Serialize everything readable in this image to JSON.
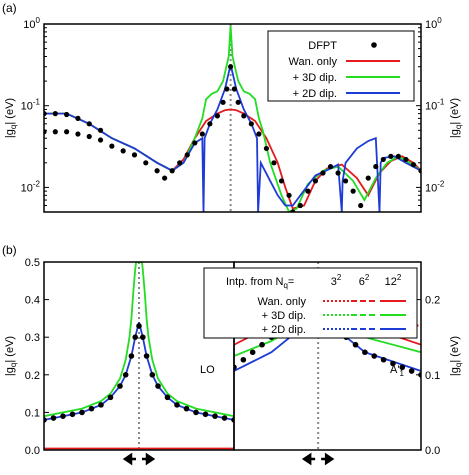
{
  "colors": {
    "dfpt": "#000000",
    "wannier": "#e41a1c",
    "dip3d": "#22dd22",
    "dip2d": "#1f3bd6",
    "guide": "#888888"
  },
  "chart_data": [
    {
      "panel_label": "(a)",
      "type": "line",
      "scale": "log",
      "ylim": [
        0.005,
        1
      ],
      "xlim": [
        0,
        1
      ],
      "ylabel_left": "|g",
      "ylabel_sub": "q",
      "ylabel_unit": "| (eV)",
      "ylabel_right": "|g",
      "yticks": [
        {
          "value": 1,
          "base": "10",
          "exp": "0"
        },
        {
          "value": 0.1,
          "base": "10",
          "exp": "-1"
        },
        {
          "value": 0.01,
          "base": "10",
          "exp": "-2"
        }
      ],
      "legend": {
        "entries": [
          {
            "label": "DFPT",
            "style": "dots",
            "color": "#000000"
          },
          {
            "label": "Wan. only",
            "style": "line",
            "color": "#e41a1c"
          },
          {
            "label": "+ 3D dip.",
            "style": "line",
            "color": "#22dd22"
          },
          {
            "label": "+ 2D dip.",
            "style": "line",
            "color": "#1f3bd6"
          }
        ]
      },
      "gamma_x": 0.495,
      "series": [
        {
          "name": "Wan. only",
          "color": "#e41a1c",
          "x": [
            0.0,
            0.06,
            0.12,
            0.18,
            0.24,
            0.3,
            0.34,
            0.37,
            0.4,
            0.43,
            0.46,
            0.48,
            0.495,
            0.51,
            0.53,
            0.56,
            0.59,
            0.62,
            0.64,
            0.66,
            0.69,
            0.72,
            0.75,
            0.79,
            0.83,
            0.86,
            0.89,
            0.92,
            0.95,
            0.98,
            1.0
          ],
          "y": [
            0.08,
            0.08,
            0.06,
            0.04,
            0.03,
            0.02,
            0.016,
            0.022,
            0.04,
            0.065,
            0.08,
            0.088,
            0.09,
            0.088,
            0.08,
            0.065,
            0.04,
            0.02,
            0.01,
            0.0055,
            0.006,
            0.012,
            0.017,
            0.019,
            0.013,
            0.008,
            0.015,
            0.021,
            0.024,
            0.02,
            0.016
          ]
        },
        {
          "name": "+ 3D dip.",
          "color": "#22dd22",
          "x": [
            0.0,
            0.06,
            0.12,
            0.18,
            0.24,
            0.3,
            0.34,
            0.37,
            0.4,
            0.42,
            0.43,
            0.445,
            0.46,
            0.475,
            0.49,
            0.495,
            0.5,
            0.515,
            0.53,
            0.545,
            0.56,
            0.57,
            0.58,
            0.6,
            0.63,
            0.65,
            0.67,
            0.7,
            0.74,
            0.78,
            0.82,
            0.85,
            0.88,
            0.91,
            0.94,
            0.97,
            1.0
          ],
          "y": [
            0.08,
            0.08,
            0.06,
            0.04,
            0.03,
            0.02,
            0.016,
            0.02,
            0.04,
            0.07,
            0.12,
            0.14,
            0.15,
            0.2,
            0.4,
            0.95,
            0.4,
            0.2,
            0.15,
            0.14,
            0.12,
            0.07,
            0.05,
            0.02,
            0.008,
            0.005,
            0.0055,
            0.011,
            0.016,
            0.018,
            0.012,
            0.007,
            0.013,
            0.02,
            0.024,
            0.02,
            0.016
          ]
        },
        {
          "name": "+ 2D dip.",
          "color": "#1f3bd6",
          "x": [
            0.0,
            0.06,
            0.12,
            0.18,
            0.24,
            0.3,
            0.34,
            0.37,
            0.4,
            0.42,
            0.423,
            0.426,
            0.44,
            0.46,
            0.48,
            0.495,
            0.51,
            0.53,
            0.55,
            0.565,
            0.568,
            0.575,
            0.6,
            0.62,
            0.64,
            0.66,
            0.68,
            0.72,
            0.76,
            0.78,
            0.79,
            0.792,
            0.8,
            0.83,
            0.86,
            0.88,
            0.89,
            0.893,
            0.9,
            0.93,
            0.96,
            1.0
          ],
          "y": [
            0.08,
            0.08,
            0.06,
            0.04,
            0.03,
            0.02,
            0.016,
            0.02,
            0.035,
            0.04,
            0.005,
            0.04,
            0.06,
            0.09,
            0.16,
            0.32,
            0.16,
            0.09,
            0.06,
            0.04,
            0.005,
            0.02,
            0.012,
            0.008,
            0.006,
            0.006,
            0.008,
            0.014,
            0.017,
            0.019,
            0.005,
            0.012,
            0.02,
            0.03,
            0.037,
            0.04,
            0.005,
            0.02,
            0.023,
            0.024,
            0.02,
            0.016
          ]
        }
      ],
      "dfpt": {
        "x": [
          0.0,
          0.03,
          0.06,
          0.09,
          0.12,
          0.15,
          0.18,
          0.21,
          0.24,
          0.27,
          0.3,
          0.32,
          0.34,
          0.36,
          0.38,
          0.4,
          0.42,
          0.44,
          0.46,
          0.475,
          0.485,
          0.495,
          0.505,
          0.515,
          0.53,
          0.55,
          0.57,
          0.59,
          0.61,
          0.63,
          0.65,
          0.66,
          0.68,
          0.7,
          0.72,
          0.74,
          0.76,
          0.78,
          0.8,
          0.82,
          0.84,
          0.86,
          0.88,
          0.9,
          0.92,
          0.94,
          0.96,
          0.98,
          1.0
        ],
        "y": [
          0.048,
          0.048,
          0.048,
          0.045,
          0.042,
          0.038,
          0.032,
          0.028,
          0.025,
          0.02,
          0.016,
          0.013,
          0.016,
          0.02,
          0.025,
          0.035,
          0.045,
          0.06,
          0.075,
          0.11,
          0.16,
          0.3,
          0.16,
          0.11,
          0.075,
          0.06,
          0.045,
          0.03,
          0.02,
          0.012,
          0.008,
          0.005,
          0.006,
          0.009,
          0.012,
          0.015,
          0.018,
          0.015,
          0.012,
          0.009,
          0.006,
          0.013,
          0.018,
          0.022,
          0.024,
          0.024,
          0.022,
          0.019,
          0.016
        ]
      },
      "dfpt_upper": {
        "x": [
          0.0,
          0.03,
          0.06,
          0.09,
          0.12,
          0.15
        ],
        "y": [
          0.08,
          0.08,
          0.078,
          0.07,
          0.06,
          0.05
        ]
      }
    },
    {
      "panel_label": "(b)",
      "type": "line",
      "scale": "linear",
      "left": {
        "ylim": [
          0,
          0.5
        ],
        "yticks": [
          "0.0",
          "0.1",
          "0.2",
          "0.3",
          "0.4",
          "0.5"
        ],
        "annotation": "LO",
        "gamma_x": 0.5,
        "series": [
          {
            "name": "Wan. only 12²",
            "color": "#e41a1c",
            "dash": "solid",
            "x": [
              0.0,
              0.5,
              1.0
            ],
            "y": [
              0.004,
              0.004,
              0.004
            ]
          },
          {
            "name": "+ 3D dip. 12²",
            "color": "#22dd22",
            "dash": "solid",
            "x": [
              0.0,
              0.1,
              0.2,
              0.3,
              0.35,
              0.4,
              0.43,
              0.45,
              0.46,
              0.47,
              0.48,
              0.485,
              0.515,
              0.52,
              0.53,
              0.54,
              0.55,
              0.57,
              0.6,
              0.65,
              0.7,
              0.8,
              0.9,
              1.0
            ],
            "y": [
              0.09,
              0.1,
              0.11,
              0.13,
              0.15,
              0.19,
              0.24,
              0.3,
              0.35,
              0.42,
              0.48,
              0.5,
              0.5,
              0.48,
              0.42,
              0.35,
              0.3,
              0.24,
              0.19,
              0.15,
              0.13,
              0.11,
              0.1,
              0.09
            ]
          },
          {
            "name": "+ 2D dip. 12²",
            "color": "#1f3bd6",
            "dash": "solid",
            "x": [
              0.0,
              0.1,
              0.2,
              0.3,
              0.35,
              0.4,
              0.43,
              0.46,
              0.48,
              0.5,
              0.52,
              0.54,
              0.57,
              0.6,
              0.65,
              0.7,
              0.8,
              0.9,
              1.0
            ],
            "y": [
              0.08,
              0.09,
              0.1,
              0.12,
              0.14,
              0.17,
              0.2,
              0.25,
              0.3,
              0.34,
              0.3,
              0.25,
              0.2,
              0.17,
              0.14,
              0.12,
              0.1,
              0.09,
              0.08
            ]
          }
        ],
        "dfpt": {
          "x": [
            0.0,
            0.05,
            0.1,
            0.15,
            0.2,
            0.25,
            0.3,
            0.35,
            0.4,
            0.43,
            0.46,
            0.48,
            0.5,
            0.52,
            0.54,
            0.57,
            0.6,
            0.65,
            0.7,
            0.75,
            0.8,
            0.85,
            0.9,
            0.95,
            1.0
          ],
          "y": [
            0.08,
            0.085,
            0.09,
            0.095,
            0.1,
            0.11,
            0.12,
            0.14,
            0.17,
            0.2,
            0.25,
            0.3,
            0.33,
            0.3,
            0.25,
            0.2,
            0.17,
            0.14,
            0.12,
            0.11,
            0.1,
            0.095,
            0.09,
            0.085,
            0.08
          ]
        }
      },
      "right": {
        "ylim": [
          0,
          0.25
        ],
        "yticks": [
          "0.0",
          "0.1",
          "0.2"
        ],
        "annotation": "A'",
        "annotation_sub": "1",
        "gamma_x": 0.45,
        "series": [
          {
            "name": "Wan. only 3²",
            "color": "#e41a1c",
            "dash": "dot",
            "x": [
              0.0,
              0.2,
              0.45,
              0.7,
              1.0
            ],
            "y": [
              0.165,
              0.175,
              0.18,
              0.175,
              0.165
            ]
          },
          {
            "name": "Wan. only 12²",
            "color": "#e41a1c",
            "dash": "solid",
            "x": [
              0.0,
              0.2,
              0.45,
              0.7,
              1.0
            ],
            "y": [
              0.14,
              0.165,
              0.185,
              0.165,
              0.14
            ]
          },
          {
            "name": "+ 3D dip. 12²",
            "color": "#22dd22",
            "dash": "solid",
            "x": [
              0.0,
              0.2,
              0.45,
              0.7,
              1.0
            ],
            "y": [
              0.125,
              0.145,
              0.18,
              0.15,
              0.13
            ]
          },
          {
            "name": "+ 2D dip. 12²",
            "color": "#1f3bd6",
            "dash": "solid",
            "x": [
              0.0,
              0.2,
              0.45,
              0.7,
              1.0
            ],
            "y": [
              0.105,
              0.13,
              0.18,
              0.13,
              0.105
            ]
          }
        ],
        "dfpt": {
          "x": [
            0.0,
            0.05,
            0.1,
            0.15,
            0.2,
            0.25,
            0.3,
            0.35,
            0.4,
            0.45,
            0.5,
            0.55,
            0.6,
            0.65,
            0.7,
            0.75,
            0.8,
            0.85,
            0.9,
            0.95,
            1.0
          ],
          "y": [
            0.11,
            0.12,
            0.13,
            0.14,
            0.15,
            0.16,
            0.165,
            0.17,
            0.175,
            0.18,
            0.17,
            0.16,
            0.15,
            0.14,
            0.13,
            0.125,
            0.12,
            0.115,
            0.11,
            0.105,
            0.1
          ]
        }
      },
      "legend": {
        "header": "Intp. from N",
        "header_sub": "q",
        "header_eq": "=",
        "columns": [
          {
            "base": "3",
            "exp": "2"
          },
          {
            "base": "6",
            "exp": "2"
          },
          {
            "base": "12",
            "exp": "2"
          }
        ],
        "rows": [
          {
            "label": "Wan. only",
            "color": "#e41a1c"
          },
          {
            "label": "+ 3D dip.",
            "color": "#22dd22"
          },
          {
            "label": "+ 2D dip.",
            "color": "#1f3bd6"
          }
        ]
      }
    }
  ]
}
